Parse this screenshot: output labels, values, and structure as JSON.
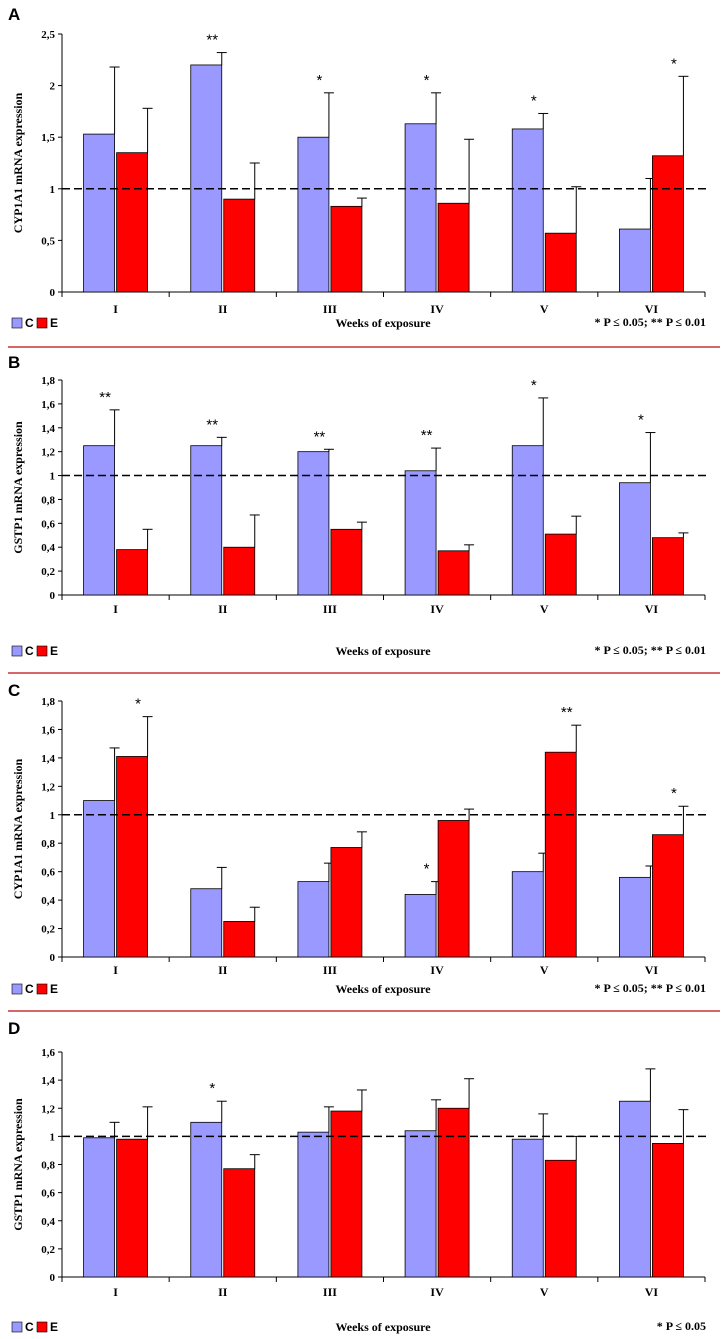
{
  "legend": {
    "control": "C",
    "exposed": "E"
  },
  "colors": {
    "control": "#9999ff",
    "exposed": "#ff0000",
    "separator": "#cc3333"
  },
  "chart_data": [
    {
      "type": "bar",
      "panel": "A",
      "ylabel": "CYP1A1 mRNA expression",
      "xlabel": "Weeks of exposure",
      "ylim": [
        0,
        2.5
      ],
      "yticks": [
        "0",
        "0,5",
        "1",
        "1,5",
        "2",
        "2,5"
      ],
      "ytick_values": [
        0,
        0.5,
        1,
        1.5,
        2,
        2.5
      ],
      "reference_line": 1,
      "categories": [
        "I",
        "II",
        "III",
        "IV",
        "V",
        "VI"
      ],
      "series": [
        {
          "name": "C",
          "values": [
            1.53,
            2.2,
            1.5,
            1.63,
            1.58,
            0.61
          ],
          "errors": [
            0.65,
            0.12,
            0.43,
            0.3,
            0.15,
            0.49
          ]
        },
        {
          "name": "E",
          "values": [
            1.35,
            0.9,
            0.83,
            0.86,
            0.57,
            1.32
          ],
          "errors": [
            0.43,
            0.35,
            0.08,
            0.62,
            0.45,
            0.77
          ]
        }
      ],
      "significance": [
        {
          "category": "I",
          "series": "C",
          "text": ""
        },
        {
          "category": "II",
          "series": "C",
          "text": "**"
        },
        {
          "category": "III",
          "series": "C",
          "text": "*"
        },
        {
          "category": "IV",
          "series": "C",
          "text": "*"
        },
        {
          "category": "V",
          "series": "C",
          "text": "*"
        },
        {
          "category": "VI",
          "series": "E",
          "text": "*"
        }
      ],
      "note": "* P ≤ 0.05; ** P ≤ 0.01"
    },
    {
      "type": "bar",
      "panel": "B",
      "ylabel": "GSTP1 mRNA expression",
      "xlabel": "Weeks of exposure",
      "ylim": [
        0,
        1.8
      ],
      "yticks": [
        "0",
        "0,2",
        "0,4",
        "0,6",
        "0,8",
        "1",
        "1,2",
        "1,4",
        "1,6",
        "1,8"
      ],
      "ytick_values": [
        0,
        0.2,
        0.4,
        0.6,
        0.8,
        1,
        1.2,
        1.4,
        1.6,
        1.8
      ],
      "reference_line": 1,
      "categories": [
        "I",
        "II",
        "III",
        "IV",
        "V",
        "VI"
      ],
      "series": [
        {
          "name": "C",
          "values": [
            1.25,
            1.25,
            1.2,
            1.04,
            1.25,
            0.94
          ],
          "errors": [
            0.3,
            0.07,
            0.02,
            0.19,
            0.4,
            0.42
          ]
        },
        {
          "name": "E",
          "values": [
            0.38,
            0.4,
            0.55,
            0.37,
            0.51,
            0.48
          ],
          "errors": [
            0.17,
            0.27,
            0.06,
            0.05,
            0.15,
            0.04
          ]
        }
      ],
      "significance": [
        {
          "category": "I",
          "series": "C",
          "text": "**"
        },
        {
          "category": "II",
          "series": "C",
          "text": "**"
        },
        {
          "category": "III",
          "series": "C",
          "text": "**"
        },
        {
          "category": "IV",
          "series": "C",
          "text": "**"
        },
        {
          "category": "V",
          "series": "C",
          "text": "*"
        },
        {
          "category": "VI",
          "series": "C",
          "text": "*"
        }
      ],
      "note": "* P ≤ 0.05; ** P ≤ 0.01"
    },
    {
      "type": "bar",
      "panel": "C",
      "ylabel": "CYP1A1 mRNA expression",
      "xlabel": "Weeks of exposure",
      "ylim": [
        0,
        1.8
      ],
      "yticks": [
        "0",
        "0,2",
        "0,4",
        "0,6",
        "0,8",
        "1",
        "1,2",
        "1,4",
        "1,6",
        "1,8"
      ],
      "ytick_values": [
        0,
        0.2,
        0.4,
        0.6,
        0.8,
        1,
        1.2,
        1.4,
        1.6,
        1.8
      ],
      "reference_line": 1,
      "categories": [
        "I",
        "II",
        "III",
        "IV",
        "V",
        "VI"
      ],
      "series": [
        {
          "name": "C",
          "values": [
            1.1,
            0.48,
            0.53,
            0.44,
            0.6,
            0.56
          ],
          "errors": [
            0.37,
            0.15,
            0.13,
            0.09,
            0.13,
            0.08
          ]
        },
        {
          "name": "E",
          "values": [
            1.41,
            0.25,
            0.77,
            0.96,
            1.44,
            0.86
          ],
          "errors": [
            0.28,
            0.1,
            0.11,
            0.08,
            0.19,
            0.2
          ]
        }
      ],
      "significance": [
        {
          "category": "I",
          "series": "E",
          "text": "*"
        },
        {
          "category": "II",
          "series": "E",
          "text": ""
        },
        {
          "category": "III",
          "series": "E",
          "text": ""
        },
        {
          "category": "IV",
          "series": "C",
          "text": "*"
        },
        {
          "category": "V",
          "series": "E",
          "text": "**"
        },
        {
          "category": "VI",
          "series": "E",
          "text": "*"
        }
      ],
      "note": "* P ≤ 0.05; ** P ≤ 0.01"
    },
    {
      "type": "bar",
      "panel": "D",
      "ylabel": "GSTP1 mRNA expression",
      "xlabel": "Weeks of exposure",
      "ylim": [
        0,
        1.6
      ],
      "yticks": [
        "0",
        "0,2",
        "0,4",
        "0,6",
        "0,8",
        "1",
        "1,2",
        "1,4",
        "1,6"
      ],
      "ytick_values": [
        0,
        0.2,
        0.4,
        0.6,
        0.8,
        1,
        1.2,
        1.4,
        1.6
      ],
      "reference_line": 1,
      "categories": [
        "I",
        "II",
        "III",
        "IV",
        "V",
        "VI"
      ],
      "series": [
        {
          "name": "C",
          "values": [
            0.99,
            1.1,
            1.03,
            1.04,
            0.98,
            1.25
          ],
          "errors": [
            0.11,
            0.15,
            0.18,
            0.22,
            0.18,
            0.23
          ]
        },
        {
          "name": "E",
          "values": [
            0.98,
            0.77,
            1.18,
            1.2,
            0.83,
            0.95
          ],
          "errors": [
            0.23,
            0.1,
            0.15,
            0.21,
            0.17,
            0.24
          ]
        }
      ],
      "significance": [
        {
          "category": "II",
          "series": "C",
          "text": "*"
        }
      ],
      "note": "* P ≤ 0.05"
    }
  ]
}
